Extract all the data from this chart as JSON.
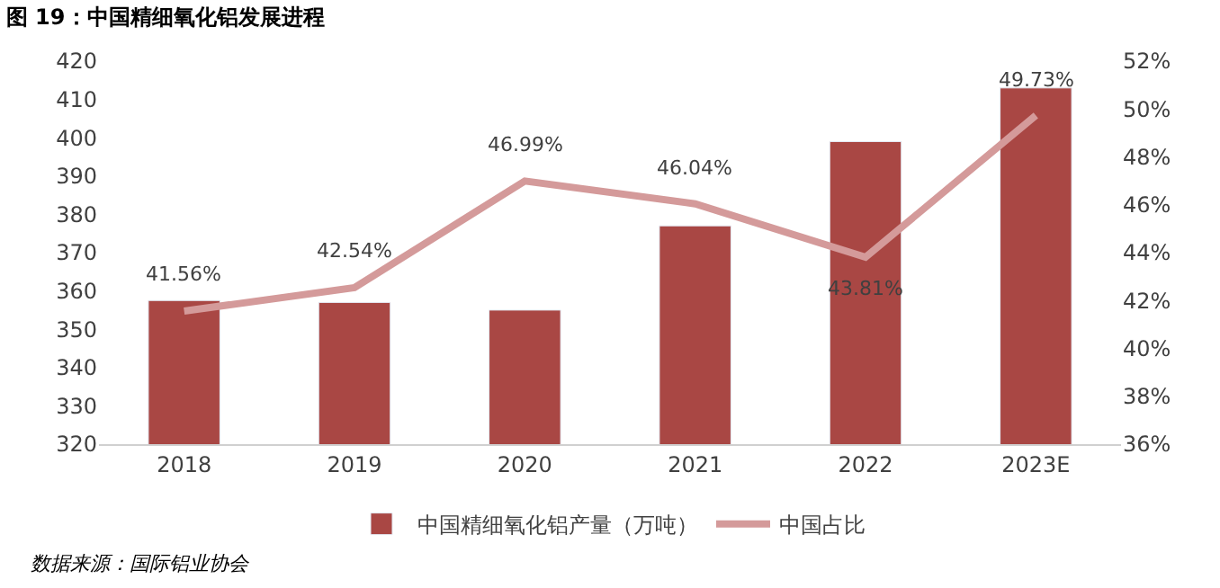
{
  "chart_data": {
    "type": "bar",
    "title": "图 19：中国精细氧化铝发展进程",
    "categories": [
      "2018",
      "2019",
      "2020",
      "2021",
      "2022",
      "2023E"
    ],
    "series": [
      {
        "name": "中国精细氧化铝产量（万吨）",
        "color": "#a94744",
        "values": [
          357.5,
          357,
          355,
          377,
          399,
          413
        ]
      },
      {
        "name": "中国占比",
        "type": "line",
        "axis": "y2",
        "color": "#d49a9a",
        "values": [
          41.56,
          42.54,
          46.99,
          46.04,
          43.81,
          49.73
        ],
        "value_labels": [
          "41.56%",
          "42.54%",
          "46.99%",
          "46.04%",
          "43.81%",
          "49.73%"
        ]
      }
    ],
    "ylim": [
      320,
      420
    ],
    "yticks": [
      320,
      330,
      340,
      350,
      360,
      370,
      380,
      390,
      400,
      410,
      420
    ],
    "y2lim": [
      36,
      52
    ],
    "y2ticks": [
      {
        "value": 36,
        "label": "36%"
      },
      {
        "value": 38,
        "label": "38%"
      },
      {
        "value": 40,
        "label": "40%"
      },
      {
        "value": 42,
        "label": "42%"
      },
      {
        "value": 44,
        "label": "44%"
      },
      {
        "value": 46,
        "label": "46%"
      },
      {
        "value": 48,
        "label": "48%"
      },
      {
        "value": 50,
        "label": "50%"
      },
      {
        "value": 52,
        "label": "52%"
      }
    ],
    "legend": "bottom",
    "marker": "none",
    "annotations": [
      "数据来源：国际铝业协会"
    ]
  }
}
